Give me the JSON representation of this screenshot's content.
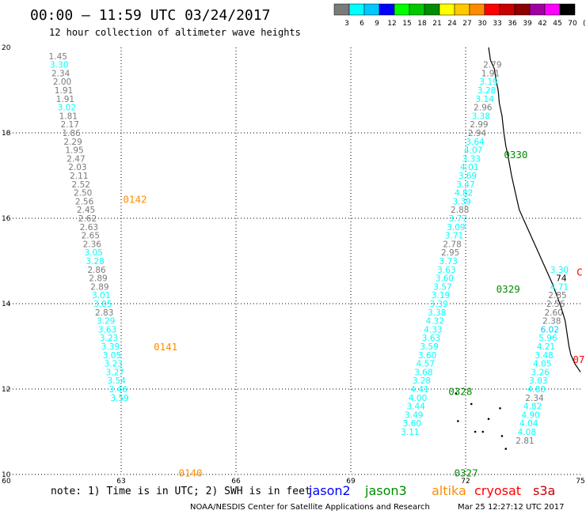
{
  "header": {
    "title": "00:00 – 11:59 UTC 03/24/2017",
    "subtitle": "12 hour collection of altimeter wave heights"
  },
  "color_scale": {
    "colors": [
      "#7a7a7a",
      "#00ffff",
      "#00c8ff",
      "#0000ff",
      "#00ff00",
      "#00c800",
      "#008c00",
      "#ffff00",
      "#ffc800",
      "#ff8c00",
      "#ff0000",
      "#c80000",
      "#8c0000",
      "#a000a0",
      "#ff00ff",
      "#000000"
    ],
    "labels": [
      "3",
      "6",
      "9",
      "12",
      "15",
      "18",
      "21",
      "24",
      "27",
      "30",
      "33",
      "36",
      "39",
      "42",
      "45",
      "70"
    ],
    "unit": "(ft)"
  },
  "footer": {
    "note": "note: 1) Time is in UTC; 2) SWH is in feet",
    "credit": "NOAA/NESDIS Center for Satellite Applications and Research",
    "timestamp": "Mar 25 12:27:12 UTC 2017"
  },
  "chart_data": {
    "type": "scatter",
    "xlim": [
      60,
      75
    ],
    "ylim": [
      10,
      20
    ],
    "x_ticks": [
      "60",
      "63",
      "66",
      "69",
      "72",
      "75"
    ],
    "y_ticks": [
      "10",
      "12",
      "14",
      "16",
      "18",
      "20"
    ],
    "grid": true,
    "legend": [
      {
        "name": "jason2",
        "color": "#0000ff"
      },
      {
        "name": "jason3",
        "color": "#008c00"
      },
      {
        "name": "altika",
        "color": "#ff8c00"
      },
      {
        "name": "cryosat",
        "color": "#ff0000"
      },
      {
        "name": "s3a",
        "color": "#c80000"
      }
    ],
    "tracks": [
      {
        "satellite": "altika",
        "color": "#ff8c00",
        "labels": [
          {
            "text": "0142",
            "x": 63.05,
            "y": 16.45
          },
          {
            "text": "0141",
            "x": 63.85,
            "y": 13.0
          },
          {
            "text": "0140",
            "x": 64.5,
            "y": 10.05
          }
        ],
        "points": [
          {
            "x": 61.35,
            "y": 19.8,
            "v": "1.45"
          },
          {
            "x": 61.38,
            "y": 19.6,
            "v": "3.30"
          },
          {
            "x": 61.42,
            "y": 19.4,
            "v": "2.34"
          },
          {
            "x": 61.46,
            "y": 19.2,
            "v": "2.00"
          },
          {
            "x": 61.5,
            "y": 19.0,
            "v": "1.91"
          },
          {
            "x": 61.54,
            "y": 18.8,
            "v": "1.91"
          },
          {
            "x": 61.58,
            "y": 18.6,
            "v": "3.02"
          },
          {
            "x": 61.62,
            "y": 18.4,
            "v": "1.81"
          },
          {
            "x": 61.66,
            "y": 18.2,
            "v": "2.17"
          },
          {
            "x": 61.7,
            "y": 18.0,
            "v": "1.86"
          },
          {
            "x": 61.74,
            "y": 17.8,
            "v": "2.29"
          },
          {
            "x": 61.78,
            "y": 17.6,
            "v": "1.95"
          },
          {
            "x": 61.82,
            "y": 17.4,
            "v": "2.47"
          },
          {
            "x": 61.86,
            "y": 17.2,
            "v": "2.03"
          },
          {
            "x": 61.9,
            "y": 17.0,
            "v": "2.11"
          },
          {
            "x": 61.95,
            "y": 16.8,
            "v": "2.52"
          },
          {
            "x": 62.0,
            "y": 16.6,
            "v": "2.50"
          },
          {
            "x": 62.04,
            "y": 16.4,
            "v": "2.56"
          },
          {
            "x": 62.08,
            "y": 16.2,
            "v": "2.45"
          },
          {
            "x": 62.12,
            "y": 16.0,
            "v": "2.62"
          },
          {
            "x": 62.16,
            "y": 15.8,
            "v": "2.63"
          },
          {
            "x": 62.2,
            "y": 15.6,
            "v": "2.65"
          },
          {
            "x": 62.24,
            "y": 15.4,
            "v": "2.36"
          },
          {
            "x": 62.28,
            "y": 15.2,
            "v": "3.05"
          },
          {
            "x": 62.32,
            "y": 15.0,
            "v": "3.28"
          },
          {
            "x": 62.36,
            "y": 14.8,
            "v": "2.86"
          },
          {
            "x": 62.4,
            "y": 14.6,
            "v": "2.89"
          },
          {
            "x": 62.44,
            "y": 14.4,
            "v": "2.89"
          },
          {
            "x": 62.48,
            "y": 14.2,
            "v": "3.01"
          },
          {
            "x": 62.52,
            "y": 14.0,
            "v": "3.05"
          },
          {
            "x": 62.56,
            "y": 13.8,
            "v": "2.83"
          },
          {
            "x": 62.6,
            "y": 13.6,
            "v": "3.29"
          },
          {
            "x": 62.64,
            "y": 13.4,
            "v": "3.63"
          },
          {
            "x": 62.68,
            "y": 13.2,
            "v": "3.23"
          },
          {
            "x": 62.72,
            "y": 13.0,
            "v": "3.39"
          },
          {
            "x": 62.76,
            "y": 12.8,
            "v": "3.05"
          },
          {
            "x": 62.8,
            "y": 12.6,
            "v": "3.23"
          },
          {
            "x": 62.84,
            "y": 12.4,
            "v": "3.27"
          },
          {
            "x": 62.88,
            "y": 12.2,
            "v": "3.54"
          },
          {
            "x": 62.92,
            "y": 12.0,
            "v": "3.46"
          },
          {
            "x": 62.96,
            "y": 11.8,
            "v": "3.59"
          }
        ]
      },
      {
        "satellite": "jason3",
        "color": "#008c00",
        "labels": [
          {
            "text": "0330",
            "x": 73.0,
            "y": 17.5
          },
          {
            "text": "0329",
            "x": 72.8,
            "y": 14.35
          },
          {
            "text": "0328",
            "x": 71.55,
            "y": 11.95
          },
          {
            "text": "0327",
            "x": 71.7,
            "y": 10.05
          }
        ],
        "points": [
          {
            "x": 72.7,
            "y": 19.6,
            "v": "2.79"
          },
          {
            "x": 72.65,
            "y": 19.4,
            "v": "1.91"
          },
          {
            "x": 72.6,
            "y": 19.2,
            "v": "3.19"
          },
          {
            "x": 72.55,
            "y": 19.0,
            "v": "3.28"
          },
          {
            "x": 72.5,
            "y": 18.8,
            "v": "3.14"
          },
          {
            "x": 72.45,
            "y": 18.6,
            "v": "2.96"
          },
          {
            "x": 72.4,
            "y": 18.4,
            "v": "3.38"
          },
          {
            "x": 72.35,
            "y": 18.2,
            "v": "2.99"
          },
          {
            "x": 72.3,
            "y": 18.0,
            "v": "2.94"
          },
          {
            "x": 72.25,
            "y": 17.8,
            "v": "3.64"
          },
          {
            "x": 72.2,
            "y": 17.6,
            "v": "4.07"
          },
          {
            "x": 72.15,
            "y": 17.4,
            "v": "3.33"
          },
          {
            "x": 72.1,
            "y": 17.2,
            "v": "4.01"
          },
          {
            "x": 72.05,
            "y": 17.0,
            "v": "3.69"
          },
          {
            "x": 72.0,
            "y": 16.8,
            "v": "3.47"
          },
          {
            "x": 71.95,
            "y": 16.6,
            "v": "4.82"
          },
          {
            "x": 71.9,
            "y": 16.4,
            "v": "3.39"
          },
          {
            "x": 71.85,
            "y": 16.2,
            "v": "2.88"
          },
          {
            "x": 71.8,
            "y": 16.0,
            "v": "3.77"
          },
          {
            "x": 71.75,
            "y": 15.8,
            "v": "3.09"
          },
          {
            "x": 71.7,
            "y": 15.6,
            "v": "3.71"
          },
          {
            "x": 71.65,
            "y": 15.4,
            "v": "2.78"
          },
          {
            "x": 71.6,
            "y": 15.2,
            "v": "2.95"
          },
          {
            "x": 71.55,
            "y": 15.0,
            "v": "3.73"
          },
          {
            "x": 71.5,
            "y": 14.8,
            "v": "3.63"
          },
          {
            "x": 71.45,
            "y": 14.6,
            "v": "3.60"
          },
          {
            "x": 71.4,
            "y": 14.4,
            "v": "3.57"
          },
          {
            "x": 71.35,
            "y": 14.2,
            "v": "3.19"
          },
          {
            "x": 71.3,
            "y": 14.0,
            "v": "3.39"
          },
          {
            "x": 71.25,
            "y": 13.8,
            "v": "3.38"
          },
          {
            "x": 71.2,
            "y": 13.6,
            "v": "4.32"
          },
          {
            "x": 71.15,
            "y": 13.4,
            "v": "4.33"
          },
          {
            "x": 71.1,
            "y": 13.2,
            "v": "3.63"
          },
          {
            "x": 71.05,
            "y": 13.0,
            "v": "3.59"
          },
          {
            "x": 71.0,
            "y": 12.8,
            "v": "3.60"
          },
          {
            "x": 70.95,
            "y": 12.6,
            "v": "4.57"
          },
          {
            "x": 70.9,
            "y": 12.4,
            "v": "3.68"
          },
          {
            "x": 70.85,
            "y": 12.2,
            "v": "3.28"
          },
          {
            "x": 70.8,
            "y": 12.0,
            "v": "4.41"
          },
          {
            "x": 70.75,
            "y": 11.8,
            "v": "4.00"
          },
          {
            "x": 70.7,
            "y": 11.6,
            "v": "3.44"
          },
          {
            "x": 70.65,
            "y": 11.4,
            "v": "3.49"
          },
          {
            "x": 70.6,
            "y": 11.2,
            "v": "3.60"
          },
          {
            "x": 70.55,
            "y": 11.0,
            "v": "3.11"
          }
        ]
      },
      {
        "satellite": "cryosat",
        "color": "#ff0000",
        "labels": [
          {
            "text": "C",
            "x": 74.9,
            "y": 14.75
          },
          {
            "text": "07",
            "x": 74.8,
            "y": 12.7
          }
        ],
        "points": [
          {
            "x": 74.45,
            "y": 14.8,
            "v": "3.30"
          },
          {
            "x": 74.5,
            "y": 14.6,
            "v": "74"
          },
          {
            "x": 74.45,
            "y": 14.4,
            "v": "4.71"
          },
          {
            "x": 74.4,
            "y": 14.2,
            "v": "2.85"
          },
          {
            "x": 74.35,
            "y": 14.0,
            "v": "2.56"
          },
          {
            "x": 74.3,
            "y": 13.8,
            "v": "2.60"
          },
          {
            "x": 74.25,
            "y": 13.6,
            "v": "2.38"
          },
          {
            "x": 74.2,
            "y": 13.4,
            "v": "6.02"
          },
          {
            "x": 74.15,
            "y": 13.2,
            "v": "5.96"
          },
          {
            "x": 74.1,
            "y": 13.0,
            "v": "4.21"
          },
          {
            "x": 74.05,
            "y": 12.8,
            "v": "3.48"
          },
          {
            "x": 74.0,
            "y": 12.6,
            "v": "4.05"
          },
          {
            "x": 73.95,
            "y": 12.4,
            "v": "3.26"
          },
          {
            "x": 73.9,
            "y": 12.2,
            "v": "3.03"
          },
          {
            "x": 73.85,
            "y": 12.0,
            "v": "4.80"
          },
          {
            "x": 73.8,
            "y": 11.8,
            "v": "2.34"
          },
          {
            "x": 73.75,
            "y": 11.6,
            "v": "4.82"
          },
          {
            "x": 73.7,
            "y": 11.4,
            "v": "4.90"
          },
          {
            "x": 73.65,
            "y": 11.2,
            "v": "4.04"
          },
          {
            "x": 73.6,
            "y": 11.0,
            "v": "4.08"
          },
          {
            "x": 73.55,
            "y": 10.8,
            "v": "2.81"
          }
        ]
      }
    ]
  }
}
